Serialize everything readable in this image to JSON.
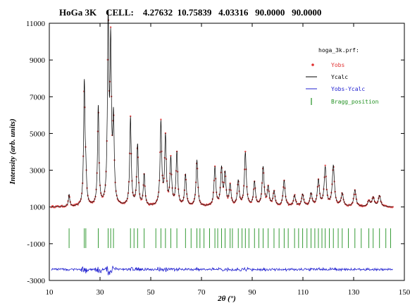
{
  "chart_data": {
    "type": "line",
    "title": "HoGa 3K    CELL:    4.27632  10.75839   4.03316   90.0000   90.0000",
    "xlabel": "2θ (°)",
    "ylabel": "Intensity (arb. units)",
    "xlim": [
      10,
      150
    ],
    "ylim": [
      -3000,
      11000
    ],
    "x_ticks": [
      "10",
      "30",
      "50",
      "70",
      "90",
      "110",
      "130",
      "150"
    ],
    "y_ticks": [
      "-3000",
      "-1000",
      "1000",
      "3000",
      "5000",
      "7000",
      "9000",
      "11000"
    ],
    "legend": {
      "title": "hoga_3k.prf:",
      "placement": "top-right",
      "entries": [
        {
          "label": "Yobs",
          "color": "#e03030",
          "marker": "dot"
        },
        {
          "label": "Ycalc",
          "color": "#000000",
          "marker": "line"
        },
        {
          "label": "Yobs-Ycalc",
          "color": "#2020d0",
          "marker": "line"
        },
        {
          "label": "Bragg_position",
          "color": "#209020",
          "marker": "tick"
        }
      ]
    },
    "background": 1000,
    "peaks": [
      {
        "x": 17.8,
        "y": 1650
      },
      {
        "x": 23.8,
        "y": 7600
      },
      {
        "x": 24.4,
        "y": 2400
      },
      {
        "x": 29.3,
        "y": 6400
      },
      {
        "x": 33.2,
        "y": 10700
      },
      {
        "x": 34.2,
        "y": 9300
      },
      {
        "x": 35.3,
        "y": 5400
      },
      {
        "x": 42.0,
        "y": 5800
      },
      {
        "x": 44.8,
        "y": 4300
      },
      {
        "x": 47.4,
        "y": 2700
      },
      {
        "x": 54.0,
        "y": 5500
      },
      {
        "x": 55.8,
        "y": 4700
      },
      {
        "x": 57.9,
        "y": 3500
      },
      {
        "x": 60.3,
        "y": 3900
      },
      {
        "x": 63.7,
        "y": 2700
      },
      {
        "x": 68.2,
        "y": 3500
      },
      {
        "x": 75.3,
        "y": 3100
      },
      {
        "x": 77.9,
        "y": 3000
      },
      {
        "x": 79.3,
        "y": 2700
      },
      {
        "x": 81.3,
        "y": 2100
      },
      {
        "x": 84.5,
        "y": 2350
      },
      {
        "x": 87.3,
        "y": 3900
      },
      {
        "x": 90.9,
        "y": 2300
      },
      {
        "x": 94.3,
        "y": 3100
      },
      {
        "x": 96.3,
        "y": 2000
      },
      {
        "x": 98.6,
        "y": 1800
      },
      {
        "x": 102.6,
        "y": 2400
      },
      {
        "x": 106.7,
        "y": 1600
      },
      {
        "x": 109.9,
        "y": 1650
      },
      {
        "x": 113.2,
        "y": 1700
      },
      {
        "x": 116.1,
        "y": 2400
      },
      {
        "x": 118.8,
        "y": 3100
      },
      {
        "x": 122.0,
        "y": 3200
      },
      {
        "x": 125.5,
        "y": 1700
      },
      {
        "x": 130.5,
        "y": 1900
      },
      {
        "x": 136.0,
        "y": 1300
      },
      {
        "x": 137.7,
        "y": 1500
      },
      {
        "x": 140.2,
        "y": 1600
      }
    ],
    "bragg_level": -700,
    "bragg_positions": [
      17.8,
      23.8,
      24.4,
      29.3,
      33.2,
      34.2,
      35.3,
      42.0,
      43.4,
      44.8,
      47.4,
      52.0,
      54.0,
      55.8,
      57.9,
      60.3,
      63.7,
      65.9,
      68.2,
      69.4,
      71.0,
      73.2,
      75.3,
      76.4,
      77.9,
      79.3,
      81.3,
      82.2,
      84.5,
      86.0,
      87.3,
      88.7,
      90.9,
      92.6,
      94.3,
      96.3,
      98.6,
      100.6,
      102.6,
      104.2,
      106.7,
      108.3,
      109.9,
      111.6,
      113.2,
      114.7,
      116.1,
      117.5,
      118.8,
      120.4,
      122.0,
      123.9,
      125.5,
      127.9,
      130.5,
      133.0,
      136.0,
      137.7,
      140.2,
      142.7,
      144.6
    ],
    "difference_level": -2400
  }
}
